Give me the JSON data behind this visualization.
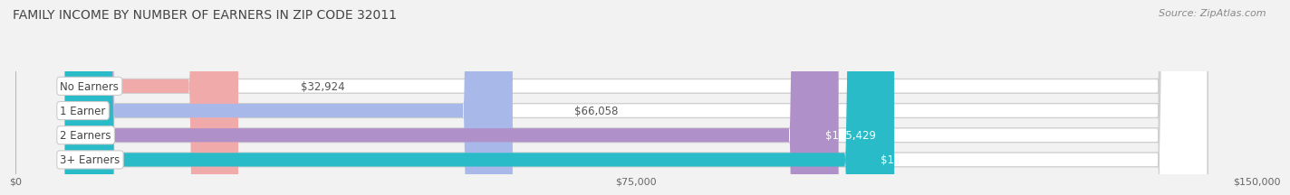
{
  "title": "FAMILY INCOME BY NUMBER OF EARNERS IN ZIP CODE 32011",
  "source": "Source: ZipAtlas.com",
  "categories": [
    "No Earners",
    "1 Earner",
    "2 Earners",
    "3+ Earners"
  ],
  "values": [
    32924,
    66058,
    105429,
    112163
  ],
  "labels": [
    "$32,924",
    "$66,058",
    "$105,429",
    "$112,163"
  ],
  "bar_colors": [
    "#f0aaaa",
    "#a8b8e8",
    "#b090c8",
    "#2abbc8"
  ],
  "label_colors": [
    "#666666",
    "#666666",
    "#ffffff",
    "#ffffff"
  ],
  "xlim": [
    0,
    150000
  ],
  "xticks": [
    0,
    75000,
    150000
  ],
  "xticklabels": [
    "$0",
    "$75,000",
    "$150,000"
  ],
  "background_color": "#f2f2f2",
  "bar_bg_color": "#e0e0e0",
  "bar_border_color": "#cccccc",
  "title_fontsize": 10,
  "source_fontsize": 8,
  "label_fontsize": 8.5,
  "category_fontsize": 8.5,
  "bar_height": 0.58,
  "rounding": 6000,
  "fig_width": 14.06,
  "fig_height": 2.33,
  "n_bars": 4
}
